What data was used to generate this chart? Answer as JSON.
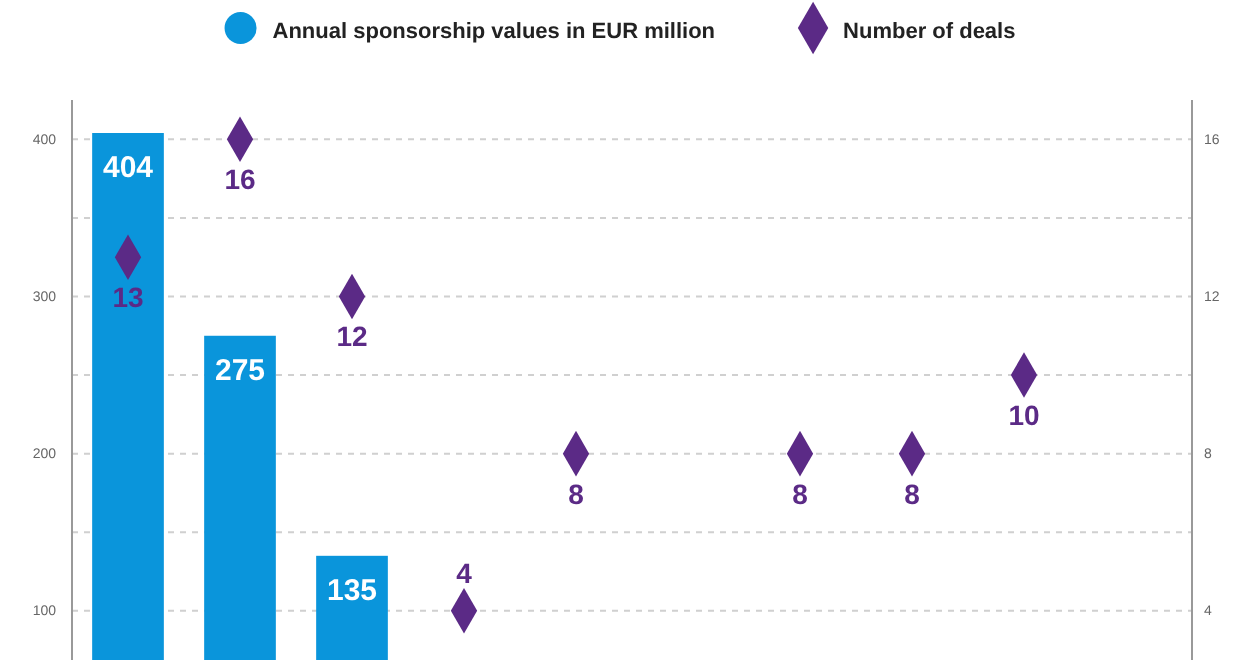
{
  "chart_data": {
    "type": "bar",
    "categories": [
      null,
      null,
      null,
      null,
      null,
      null,
      null,
      null,
      null,
      null
    ],
    "series": [
      {
        "name": "Annual sponsorship values in EUR million",
        "color": "#0a95db",
        "values": [
          404,
          275,
          135,
          null,
          null,
          null,
          null,
          null,
          null,
          null
        ]
      },
      {
        "name": "Number of deals",
        "type": "scatter",
        "axis": "y2",
        "marker": "diamond",
        "color": "#5b2a86",
        "values": [
          13,
          16,
          12,
          4,
          8,
          null,
          8,
          8,
          10,
          null
        ]
      }
    ],
    "ylim": [
      0,
      425
    ],
    "yticks": [
      100,
      {
        "value": 150,
        "label": null
      },
      200,
      {
        "value": 250,
        "label": null
      },
      300,
      {
        "value": 350,
        "label": null
      },
      400
    ],
    "y2lim": [
      0,
      17
    ],
    "y2ticks": [
      4,
      8,
      12,
      16
    ],
    "grid": "y",
    "legend": "top",
    "data_labels": true
  }
}
